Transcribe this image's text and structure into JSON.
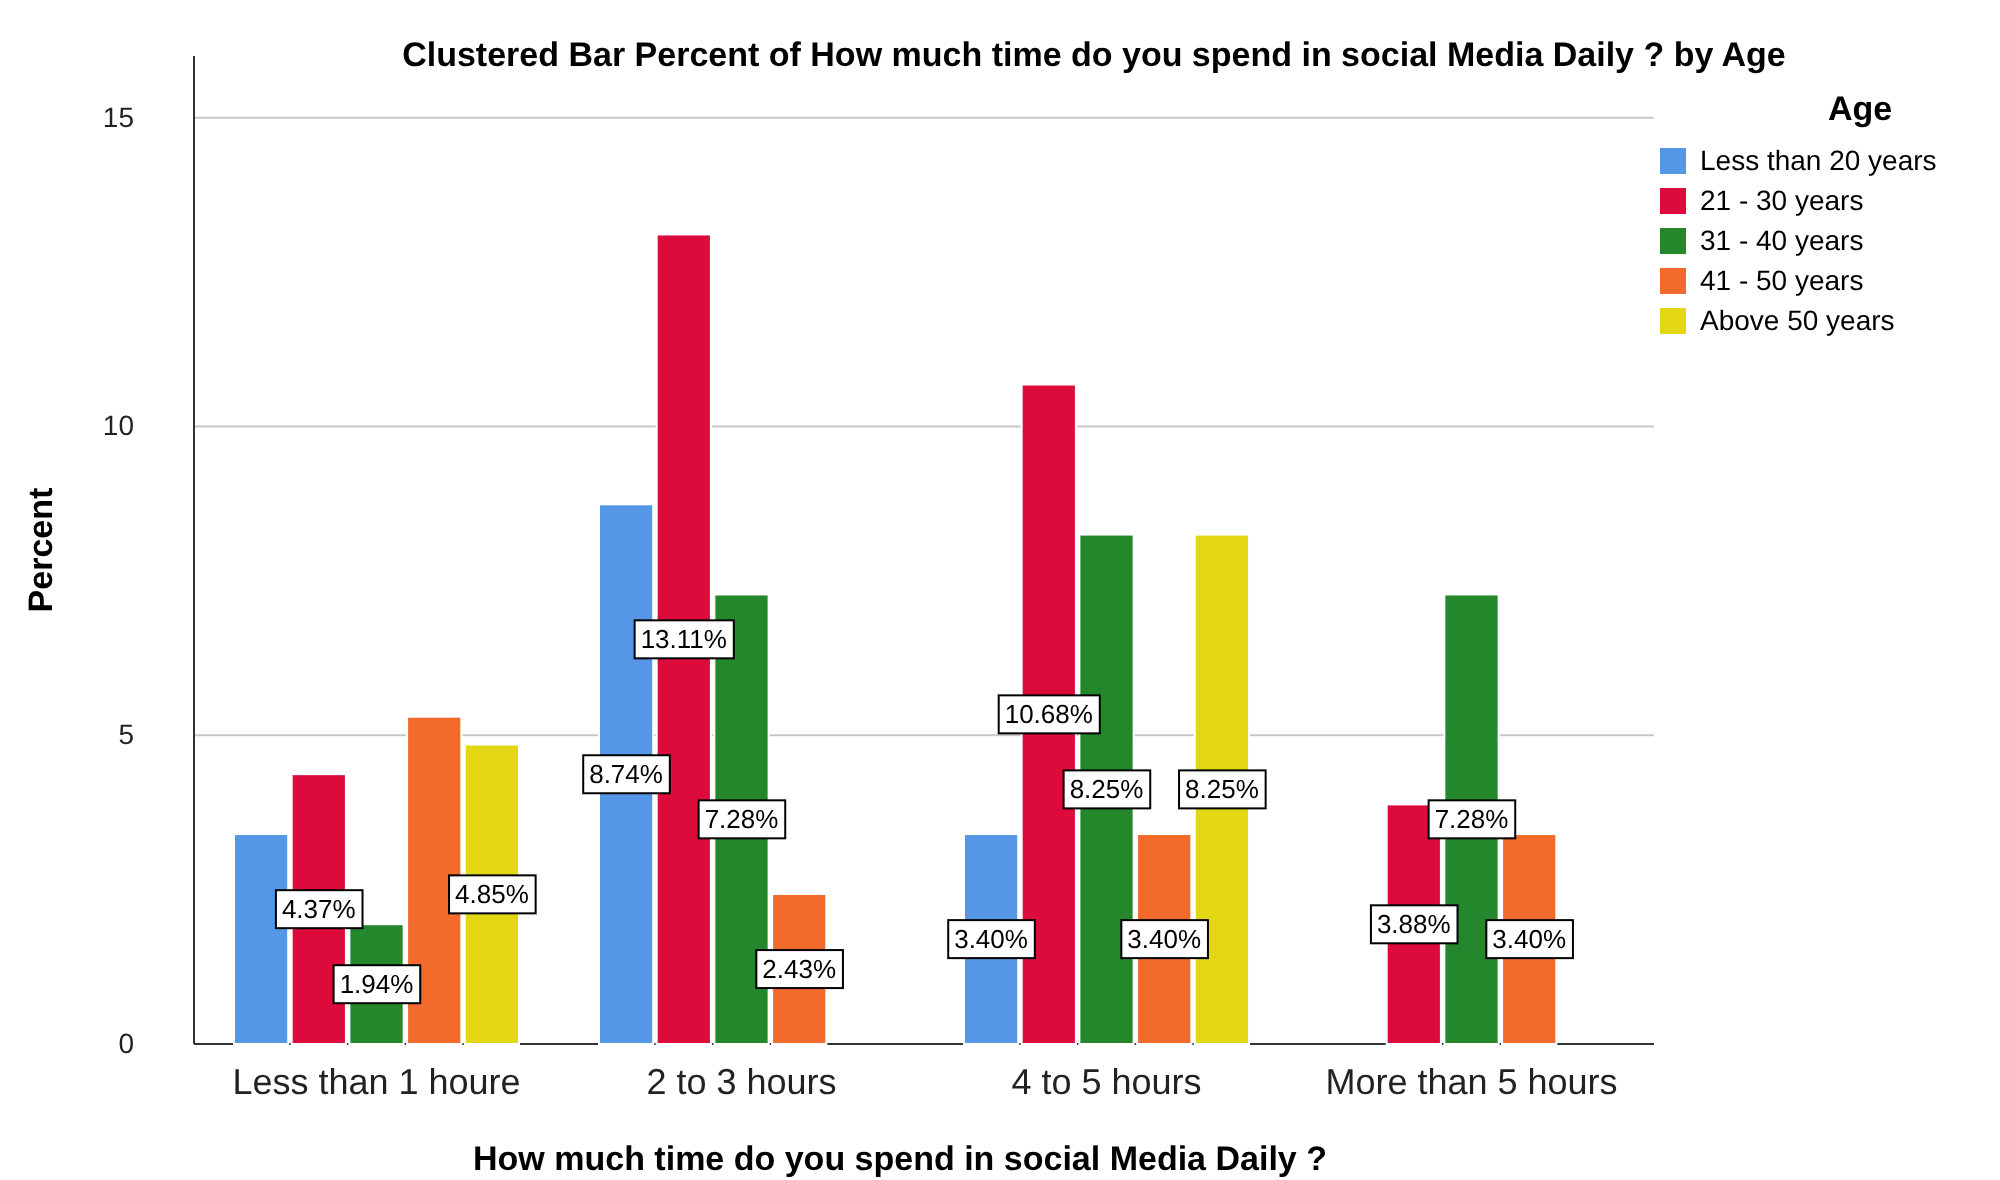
{
  "chart_data": {
    "type": "bar",
    "title": "Clustered Bar Percent of How much time do you spend in social Media Daily ? by Age",
    "xlabel": "How much time do you spend in social Media Daily ?",
    "ylabel": "Percent",
    "legend_title": "Age",
    "categories": [
      "Less than 1 houre",
      "2 to 3 hours",
      "4 to 5 hours",
      "More than 5 hours"
    ],
    "series": [
      {
        "name": "Less than 20 years",
        "color": "#5597e6",
        "values": [
          3.4,
          8.74,
          3.4,
          null
        ],
        "value_labels": [
          null,
          "8.74%",
          "3.40%",
          null
        ]
      },
      {
        "name": "21 - 30 years",
        "color": "#dc0b3c",
        "values": [
          4.37,
          13.11,
          10.68,
          3.88
        ],
        "value_labels": [
          "4.37%",
          "13.11%",
          "10.68%",
          "3.88%"
        ]
      },
      {
        "name": "31 - 40 years",
        "color": "#24872c",
        "values": [
          1.94,
          7.28,
          8.25,
          7.28
        ],
        "value_labels": [
          "1.94%",
          "7.28%",
          "8.25%",
          "7.28%"
        ]
      },
      {
        "name": "41 - 50 years",
        "color": "#f26a2c",
        "values": [
          5.3,
          2.43,
          3.4,
          3.4
        ],
        "value_labels": [
          null,
          "2.43%",
          "3.40%",
          "3.40%"
        ]
      },
      {
        "name": "Above 50 years",
        "color": "#e2d712",
        "values": [
          4.85,
          null,
          8.25,
          null
        ],
        "value_labels": [
          "4.85%",
          null,
          "8.25%",
          null
        ]
      }
    ],
    "ylim": [
      0,
      16
    ],
    "yticks": [
      0,
      5,
      10,
      15
    ],
    "grid": "y",
    "legend": "top right"
  }
}
